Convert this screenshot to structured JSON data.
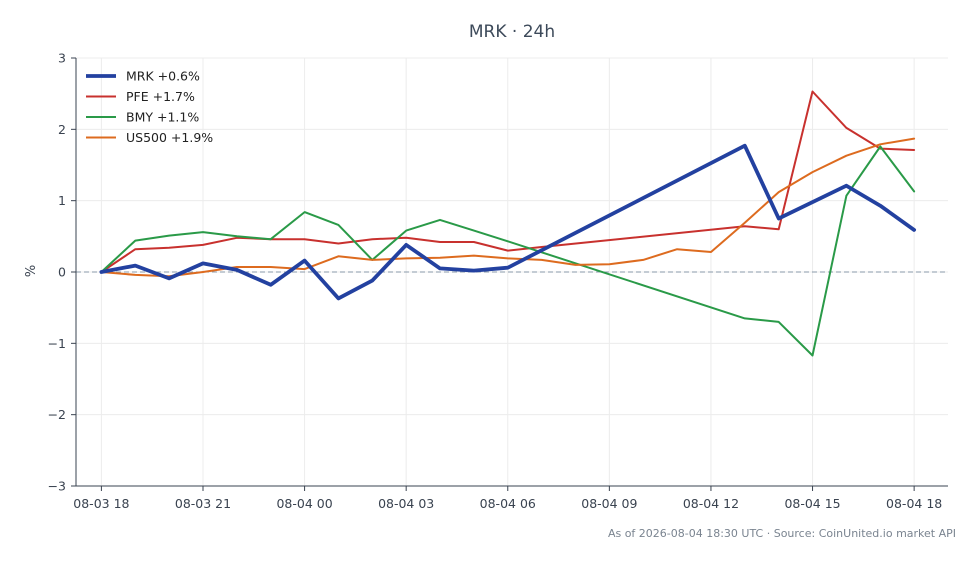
{
  "chart_data": {
    "type": "line",
    "title": "MRK · 24h",
    "xlabel": "",
    "ylabel": "%",
    "ylim": [
      -3,
      3
    ],
    "yticks": [
      3,
      2,
      1,
      0,
      -1,
      -2,
      -3
    ],
    "ytick_labels": [
      "3",
      "2",
      "1",
      "0",
      "−1",
      "−2",
      "−3"
    ],
    "xlim": [
      "08-03 17:15",
      "08-04 19:00"
    ],
    "xticks": [
      "08-03 18",
      "08-03 21",
      "08-04 00",
      "08-04 03",
      "08-04 06",
      "08-04 09",
      "08-04 12",
      "08-04 15",
      "08-04 18"
    ],
    "grid": true,
    "zero_line": true,
    "legend_position": "top-left",
    "source": "As of 2026-08-04 18:30 UTC · Source: CoinUnited.io market API",
    "series": [
      {
        "name": "MRK +0.6%",
        "color": "#2341a0",
        "thick": true,
        "x": [
          "08-03 18:00",
          "08-03 19:00",
          "08-03 20:00",
          "08-03 21:00",
          "08-03 22:00",
          "08-03 23:00",
          "08-04 00:00",
          "08-04 01:00",
          "08-04 02:00",
          "08-04 03:00",
          "08-04 04:00",
          "08-04 05:00",
          "08-04 06:00",
          "08-04 13:00",
          "08-04 14:00",
          "08-04 16:00",
          "08-04 17:00",
          "08-04 18:00"
        ],
        "y": [
          0.0,
          0.09,
          -0.09,
          0.12,
          0.03,
          -0.18,
          0.16,
          -0.37,
          -0.12,
          0.38,
          0.05,
          0.02,
          0.06,
          1.77,
          0.75,
          1.21,
          0.93,
          0.59
        ]
      },
      {
        "name": "PFE +1.7%",
        "color": "#c8312e",
        "thick": false,
        "x": [
          "08-03 18:00",
          "08-03 19:00",
          "08-03 20:00",
          "08-03 21:00",
          "08-03 22:00",
          "08-03 23:00",
          "08-04 00:00",
          "08-04 01:00",
          "08-04 02:00",
          "08-04 03:00",
          "08-04 04:00",
          "08-04 05:00",
          "08-04 06:00",
          "08-04 07:00",
          "08-04 13:00",
          "08-04 14:00",
          "08-04 15:00",
          "08-04 16:00",
          "08-04 17:00",
          "08-04 18:00"
        ],
        "y": [
          0.0,
          0.32,
          0.34,
          0.38,
          0.48,
          0.46,
          0.46,
          0.4,
          0.46,
          0.48,
          0.42,
          0.42,
          0.3,
          0.35,
          0.64,
          0.6,
          2.53,
          2.02,
          1.73,
          1.71
        ]
      },
      {
        "name": "BMY +1.1%",
        "color": "#2a9a48",
        "thick": false,
        "x": [
          "08-03 18:00",
          "08-03 19:00",
          "08-03 20:00",
          "08-03 21:00",
          "08-03 22:00",
          "08-03 23:00",
          "08-04 00:00",
          "08-04 01:00",
          "08-04 02:00",
          "08-04 03:00",
          "08-04 04:00",
          "08-04 05:00",
          "08-04 06:00",
          "08-04 13:00",
          "08-04 14:00",
          "08-04 15:00",
          "08-04 16:00",
          "08-04 17:00",
          "08-04 18:00"
        ],
        "y": [
          0.0,
          0.44,
          0.51,
          0.56,
          0.5,
          0.46,
          0.84,
          0.66,
          0.17,
          0.58,
          0.73,
          0.58,
          0.43,
          -0.65,
          -0.7,
          -1.17,
          1.07,
          1.76,
          1.13
        ]
      },
      {
        "name": "US500 +1.9%",
        "color": "#dd6b1f",
        "thick": false,
        "x": [
          "08-03 18:00",
          "08-03 19:00",
          "08-03 20:00",
          "08-03 21:00",
          "08-03 22:00",
          "08-03 23:00",
          "08-04 00:00",
          "08-04 01:00",
          "08-04 02:00",
          "08-04 03:00",
          "08-04 04:00",
          "08-04 05:00",
          "08-04 06:00",
          "08-04 07:00",
          "08-04 08:00",
          "08-04 09:00",
          "08-04 10:00",
          "08-04 11:00",
          "08-04 12:00",
          "08-04 13:00",
          "08-04 14:00",
          "08-04 15:00",
          "08-04 16:00",
          "08-04 17:00",
          "08-04 18:00"
        ],
        "y": [
          0.0,
          -0.04,
          -0.06,
          0.0,
          0.07,
          0.07,
          0.04,
          0.22,
          0.17,
          0.19,
          0.2,
          0.23,
          0.19,
          0.17,
          0.1,
          0.11,
          0.17,
          0.32,
          0.28,
          0.69,
          1.12,
          1.4,
          1.63,
          1.79,
          1.87
        ]
      }
    ]
  }
}
